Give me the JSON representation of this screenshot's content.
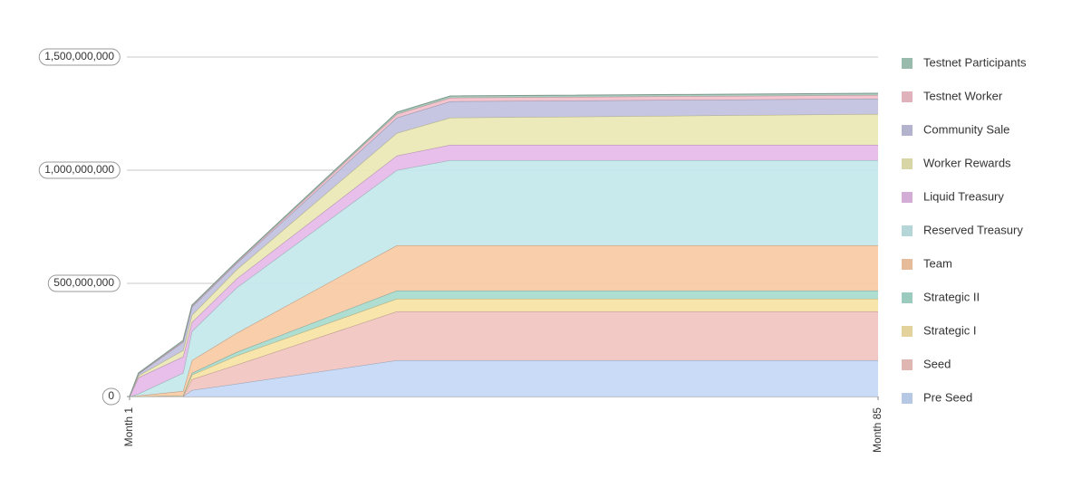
{
  "chart_data": {
    "type": "stacked-area",
    "x": [
      1,
      2,
      7,
      8,
      13,
      31,
      37,
      85
    ],
    "xlim": [
      1,
      85
    ],
    "xticks": [
      {
        "value": 1,
        "label": "Month 1"
      },
      {
        "value": 85,
        "label": "Month 85"
      }
    ],
    "ylim": [
      0,
      1500000000
    ],
    "yticks": [
      0,
      {
        "value": 500000000,
        "label": "500,000,000"
      },
      {
        "value": 1000000000,
        "label": "1,000,000,000"
      },
      {
        "value": 1500000000,
        "label": "1,500,000,000"
      }
    ],
    "grid": true,
    "legend": "right",
    "series": [
      {
        "name": "Pre Seed",
        "color": "#c6d9f7",
        "values": [
          0,
          0,
          0,
          28000000,
          56000000,
          160000000,
          160000000,
          160000000
        ]
      },
      {
        "name": "Seed",
        "color": "#f2c6c2",
        "values": [
          0,
          0,
          0,
          48000000,
          84000000,
          216000000,
          216000000,
          216000000
        ]
      },
      {
        "name": "Strategic I",
        "color": "#f7e4a8",
        "values": [
          0,
          0,
          4000000,
          20000000,
          40000000,
          56000000,
          56000000,
          56000000
        ]
      },
      {
        "name": "Strategic II",
        "color": "#a9dccf",
        "values": [
          0,
          0,
          0,
          8000000,
          16000000,
          36000000,
          36000000,
          36000000
        ]
      },
      {
        "name": "Team",
        "color": "#f9cba7",
        "values": [
          0,
          4000000,
          20000000,
          56000000,
          84000000,
          200000000,
          200000000,
          200000000
        ]
      },
      {
        "name": "Reserved Treasury",
        "color": "#c5e9ec",
        "values": [
          0,
          8000000,
          80000000,
          128000000,
          200000000,
          332000000,
          376000000,
          376000000
        ]
      },
      {
        "name": "Liquid Treasury",
        "color": "#e6bce9",
        "values": [
          0,
          72000000,
          72000000,
          40000000,
          40000000,
          64000000,
          68000000,
          68000000
        ]
      },
      {
        "name": "Worker Rewards",
        "color": "#ebe8b6",
        "values": [
          0,
          8000000,
          28000000,
          32000000,
          40000000,
          100000000,
          120000000,
          136000000
        ]
      },
      {
        "name": "Community Sale",
        "color": "#c3c3e0",
        "values": [
          0,
          8000000,
          36000000,
          36000000,
          28000000,
          68000000,
          72000000,
          68000000
        ]
      },
      {
        "name": "Testnet Worker",
        "color": "#f4c2cc",
        "values": [
          0,
          2000000,
          4000000,
          4000000,
          4000000,
          16000000,
          16000000,
          16000000
        ]
      },
      {
        "name": "Testnet Participants",
        "color": "#a6cbbc",
        "values": [
          0,
          2000000,
          4000000,
          4000000,
          4000000,
          8000000,
          8000000,
          8000000
        ]
      }
    ]
  }
}
